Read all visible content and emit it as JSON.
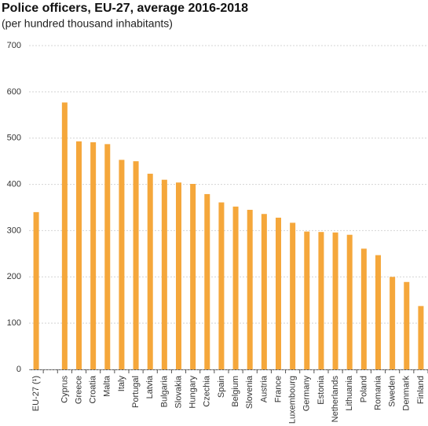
{
  "chart_data": {
    "type": "bar",
    "title": "Police officers, EU-27, average 2016-2018",
    "subtitle": "(per hundred thousand inhabitants)",
    "categories": [
      "EU-27 (¹)",
      null,
      "Cyprus",
      "Greece",
      "Croatia",
      "Malta",
      "Italy",
      "Portugal",
      "Latvia",
      "Bulgaria",
      "Slovakia",
      "Hungary",
      "Czechia",
      "Spain",
      "Belgium",
      "Slovenia",
      "Austria",
      "France",
      "Luxembourg",
      "Germany",
      "Estonia",
      "Netherlands",
      "Lithuania",
      "Poland",
      "Romania",
      "Sweden",
      "Denmark",
      "Finland"
    ],
    "values": [
      340,
      null,
      577,
      493,
      491,
      487,
      453,
      450,
      423,
      410,
      404,
      401,
      379,
      361,
      352,
      345,
      336,
      328,
      317,
      298,
      297,
      296,
      291,
      261,
      247,
      200,
      189,
      137
    ],
    "color": "#f5a73b",
    "ylim": [
      0,
      700
    ],
    "yticks": [
      0,
      100,
      200,
      300,
      400,
      500,
      600,
      700
    ],
    "grid": true
  }
}
